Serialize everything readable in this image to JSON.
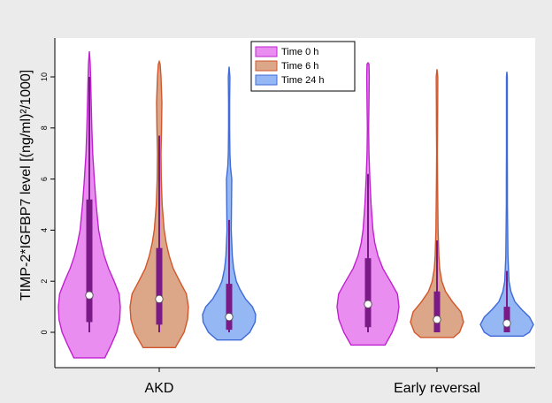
{
  "chart_data": {
    "type": "violin",
    "ylabel": "TIMP-2*IGFBP7 level [(ng/ml)²/1000]",
    "xlabel": "",
    "yticks": [
      0,
      2,
      4,
      6,
      8,
      10
    ],
    "ylim": [
      -1.1,
      11.2
    ],
    "grid": false,
    "legend_position": "top-center",
    "categories": [
      "AKD",
      "Early reversal"
    ],
    "colors": {
      "plot_background": "#ebebeb",
      "box": "#7a1a86",
      "median_dot": "#ffffff"
    },
    "series": [
      {
        "name": "Time 0 h",
        "fill": "#e98ef0",
        "stroke": "#c021cf",
        "groups": [
          {
            "category": "AKD",
            "min": -1.0,
            "max": 11.0,
            "q1": 0.4,
            "median": 1.45,
            "q3": 5.2,
            "whisker_low": 0.0,
            "whisker_high": 10.0,
            "shape": [
              [
                -1.0,
                0.5
              ],
              [
                -0.5,
                0.7
              ],
              [
                0.0,
                0.88
              ],
              [
                0.5,
                0.98
              ],
              [
                1.0,
                1.0
              ],
              [
                1.5,
                0.96
              ],
              [
                2.0,
                0.8
              ],
              [
                2.5,
                0.62
              ],
              [
                3.0,
                0.48
              ],
              [
                3.5,
                0.38
              ],
              [
                4.0,
                0.3
              ],
              [
                5.0,
                0.22
              ],
              [
                6.0,
                0.16
              ],
              [
                7.0,
                0.11
              ],
              [
                8.0,
                0.08
              ],
              [
                9.0,
                0.06
              ],
              [
                10.0,
                0.04
              ],
              [
                10.5,
                0.03
              ],
              [
                11.0,
                0.0
              ]
            ]
          },
          {
            "category": "Early reversal",
            "min": -0.5,
            "max": 10.5,
            "q1": 0.2,
            "median": 1.1,
            "q3": 2.9,
            "whisker_low": 0.0,
            "whisker_high": 6.2,
            "shape": [
              [
                -0.5,
                0.55
              ],
              [
                0.0,
                0.78
              ],
              [
                0.5,
                0.94
              ],
              [
                1.0,
                1.0
              ],
              [
                1.5,
                0.95
              ],
              [
                2.0,
                0.72
              ],
              [
                2.5,
                0.48
              ],
              [
                3.0,
                0.32
              ],
              [
                3.5,
                0.22
              ],
              [
                4.0,
                0.16
              ],
              [
                5.0,
                0.1
              ],
              [
                6.0,
                0.06
              ],
              [
                7.0,
                0.03
              ],
              [
                8.0,
                0.02
              ],
              [
                9.0,
                0.03
              ],
              [
                10.0,
                0.04
              ],
              [
                10.5,
                0.03
              ],
              [
                10.55,
                0.0
              ]
            ]
          }
        ]
      },
      {
        "name": "Time 6 h",
        "fill": "#dca788",
        "stroke": "#d2562b",
        "groups": [
          {
            "category": "AKD",
            "min": -0.6,
            "max": 10.6,
            "q1": 0.3,
            "median": 1.3,
            "q3": 3.3,
            "whisker_low": 0.0,
            "whisker_high": 7.7,
            "shape": [
              [
                -0.6,
                0.55
              ],
              [
                0.0,
                0.85
              ],
              [
                0.5,
                0.97
              ],
              [
                1.0,
                1.0
              ],
              [
                1.5,
                0.93
              ],
              [
                2.0,
                0.7
              ],
              [
                2.5,
                0.48
              ],
              [
                3.0,
                0.34
              ],
              [
                3.5,
                0.24
              ],
              [
                4.0,
                0.17
              ],
              [
                5.0,
                0.1
              ],
              [
                6.0,
                0.07
              ],
              [
                7.0,
                0.06
              ],
              [
                8.0,
                0.08
              ],
              [
                9.0,
                0.09
              ],
              [
                10.0,
                0.06
              ],
              [
                10.5,
                0.03
              ],
              [
                10.6,
                0.0
              ]
            ]
          },
          {
            "category": "Early reversal",
            "min": -0.2,
            "max": 10.3,
            "q1": 0.0,
            "median": 0.5,
            "q3": 1.6,
            "whisker_low": 0.0,
            "whisker_high": 3.6,
            "shape": [
              [
                -0.2,
                0.62
              ],
              [
                0.0,
                0.85
              ],
              [
                0.4,
                1.0
              ],
              [
                0.8,
                0.9
              ],
              [
                1.2,
                0.58
              ],
              [
                1.6,
                0.32
              ],
              [
                2.0,
                0.18
              ],
              [
                2.5,
                0.1
              ],
              [
                3.0,
                0.07
              ],
              [
                4.0,
                0.04
              ],
              [
                5.0,
                0.03
              ],
              [
                6.0,
                0.02
              ],
              [
                7.0,
                0.015
              ],
              [
                8.0,
                0.02
              ],
              [
                9.0,
                0.025
              ],
              [
                10.0,
                0.03
              ],
              [
                10.3,
                0.0
              ]
            ]
          }
        ]
      },
      {
        "name": "Time 24 h",
        "fill": "#95b7f3",
        "stroke": "#3e6bd8",
        "groups": [
          {
            "category": "AKD",
            "min": -0.3,
            "max": 10.4,
            "q1": 0.1,
            "median": 0.6,
            "q3": 1.9,
            "whisker_low": 0.0,
            "whisker_high": 4.4,
            "shape": [
              [
                -0.3,
                0.45
              ],
              [
                0.0,
                0.78
              ],
              [
                0.4,
                0.98
              ],
              [
                0.7,
                1.0
              ],
              [
                1.0,
                0.88
              ],
              [
                1.3,
                0.62
              ],
              [
                1.7,
                0.4
              ],
              [
                2.0,
                0.27
              ],
              [
                2.5,
                0.17
              ],
              [
                3.0,
                0.12
              ],
              [
                4.0,
                0.08
              ],
              [
                5.0,
                0.09
              ],
              [
                6.0,
                0.1
              ],
              [
                6.5,
                0.05
              ],
              [
                7.0,
                0.03
              ],
              [
                8.0,
                0.02
              ],
              [
                9.0,
                0.02
              ],
              [
                10.0,
                0.03
              ],
              [
                10.4,
                0.0
              ]
            ]
          },
          {
            "category": "Early reversal",
            "min": -0.15,
            "max": 10.2,
            "q1": 0.0,
            "median": 0.35,
            "q3": 1.0,
            "whisker_low": 0.0,
            "whisker_high": 2.4,
            "shape": [
              [
                -0.15,
                0.62
              ],
              [
                0.0,
                0.85
              ],
              [
                0.3,
                1.0
              ],
              [
                0.6,
                0.85
              ],
              [
                0.9,
                0.55
              ],
              [
                1.2,
                0.3
              ],
              [
                1.6,
                0.15
              ],
              [
                2.0,
                0.08
              ],
              [
                3.0,
                0.04
              ],
              [
                4.0,
                0.03
              ],
              [
                5.0,
                0.02
              ],
              [
                6.0,
                0.02
              ],
              [
                7.0,
                0.015
              ],
              [
                8.0,
                0.015
              ],
              [
                9.0,
                0.015
              ],
              [
                10.0,
                0.015
              ],
              [
                10.2,
                0.0
              ]
            ]
          }
        ]
      }
    ]
  }
}
